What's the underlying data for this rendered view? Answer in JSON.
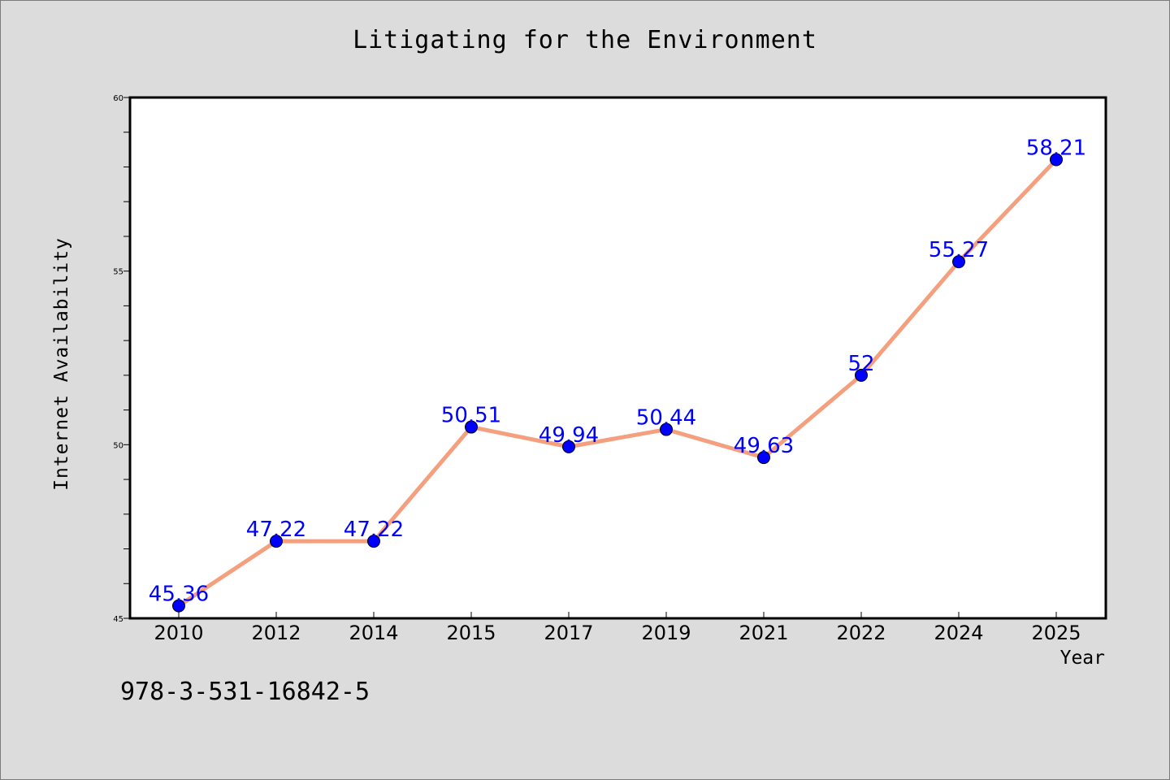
{
  "page": {
    "title": "Litigating for the Environment",
    "footer_code": "978-3-531-16842-5"
  },
  "colors": {
    "background": "#dcdcdc",
    "plot_background": "#ffffff",
    "line": "#f4a07f",
    "marker": "#0000ff",
    "data_label": "#0000ff"
  },
  "chart_data": {
    "type": "line",
    "title": "Litigating for the Environment",
    "xlabel": "Year",
    "ylabel": "Internet Availability",
    "categories": [
      "2010",
      "2012",
      "2014",
      "2015",
      "2017",
      "2019",
      "2021",
      "2022",
      "2024",
      "2025"
    ],
    "values": [
      45.36,
      47.22,
      47.22,
      50.51,
      49.94,
      50.44,
      49.63,
      52,
      55.27,
      58.21
    ],
    "data_labels": [
      "45.36",
      "47.22",
      "47.22",
      "50.51",
      "49.94",
      "50.44",
      "49.63",
      "52",
      "55.27",
      "58.21"
    ],
    "ylim": [
      45,
      60
    ],
    "y_ticks": [
      45,
      50,
      55,
      60
    ],
    "y_minor_step": 1,
    "grid": false,
    "legend": "none"
  }
}
